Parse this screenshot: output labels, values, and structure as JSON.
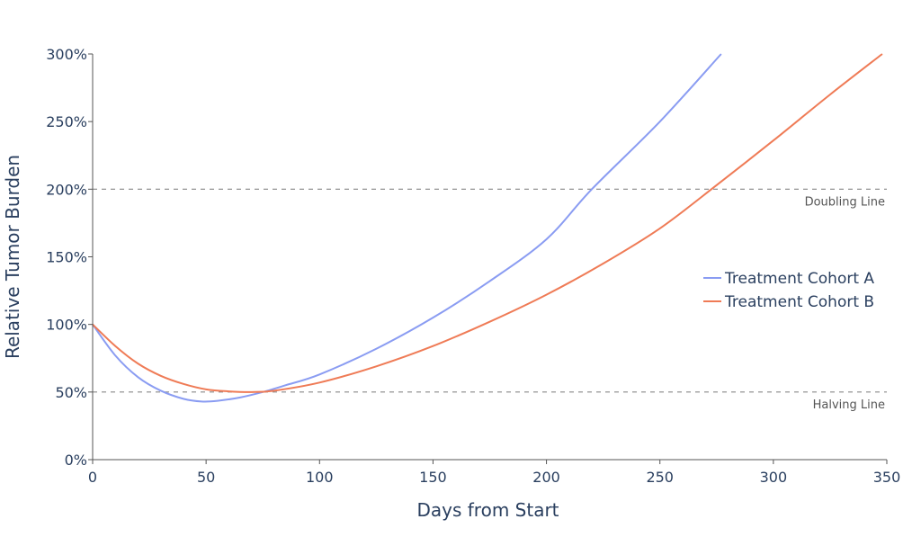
{
  "chart_data": {
    "type": "line",
    "title": "",
    "xlabel": "Days from Start",
    "ylabel": "Relative Tumor Burden",
    "xlim": [
      0,
      350
    ],
    "ylim": [
      0,
      300
    ],
    "x_ticks": [
      0,
      50,
      100,
      150,
      200,
      250,
      300,
      350
    ],
    "x_tick_labels": [
      "0",
      "50",
      "100",
      "150",
      "200",
      "250",
      "300",
      "350"
    ],
    "y_ticks": [
      0,
      50,
      100,
      150,
      200,
      250,
      300
    ],
    "y_tick_labels": [
      "0%",
      "50%",
      "100%",
      "150%",
      "200%",
      "250%",
      "300%"
    ],
    "grid": false,
    "legend_position": "right",
    "series": [
      {
        "name": "Treatment Cohort A",
        "color": "#8a9cf2",
        "x": [
          0,
          10,
          20,
          30,
          40,
          48,
          55,
          65,
          75,
          85,
          100,
          125,
          150,
          175,
          200,
          220,
          250,
          277
        ],
        "y": [
          100,
          77,
          61,
          51,
          45,
          43,
          43.5,
          46,
          50,
          55,
          63,
          82,
          105,
          132,
          163,
          200,
          250,
          300
        ]
      },
      {
        "name": "Treatment Cohort B",
        "color": "#ef7b56",
        "x": [
          0,
          10,
          20,
          30,
          40,
          50,
          60,
          70,
          80,
          100,
          125,
          150,
          175,
          200,
          225,
          250,
          275,
          300,
          325,
          348
        ],
        "y": [
          100,
          84,
          71,
          62,
          56,
          52,
          50.5,
          50,
          51,
          57,
          69,
          84,
          102,
          122,
          145,
          171,
          203,
          236,
          270,
          300
        ]
      }
    ],
    "reference_lines": [
      {
        "y": 200,
        "label": "Doubling Line"
      },
      {
        "y": 50,
        "label": "Halving Line"
      }
    ]
  }
}
